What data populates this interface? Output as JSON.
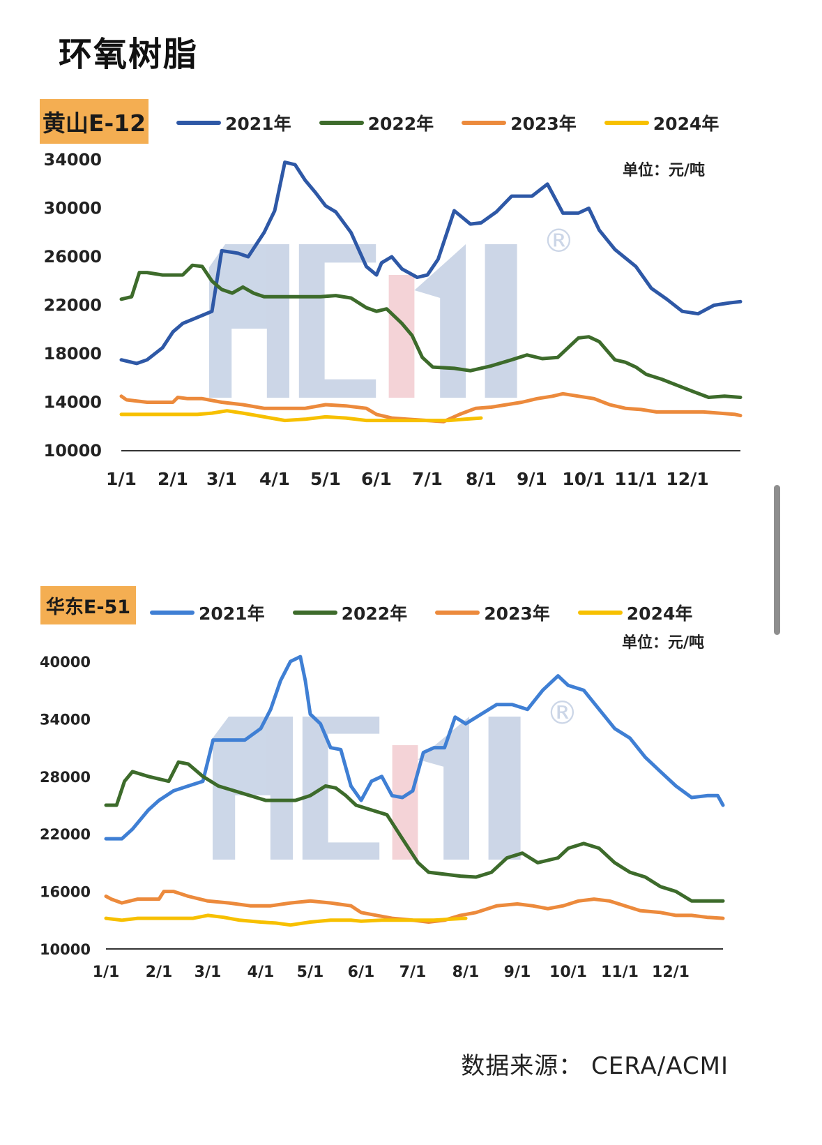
{
  "page": {
    "title": "环氧树脂",
    "source": "数据来源： CERA/ACMI",
    "watermark": "ACMI®"
  },
  "colors": {
    "2021": "#2E58A6",
    "2022": "#3D6B2B",
    "2023": "#EC8A3C",
    "2024": "#F7C000",
    "badge": "#F4AE52"
  },
  "chart_data": [
    {
      "type": "line",
      "title": "黄山E-12",
      "unit": "单位：元/吨",
      "ylim": [
        10000,
        34000
      ],
      "yticks": [
        "34000",
        "30000",
        "26000",
        "22000",
        "18000",
        "14000",
        "10000"
      ],
      "x_ticks": [
        "1/1",
        "2/1",
        "3/1",
        "4/1",
        "5/1",
        "6/1",
        "7/1",
        "8/1",
        "9/1",
        "10/1",
        "11/1",
        "12/1"
      ],
      "series": [
        {
          "name": "2021年",
          "color": "#2E58A6",
          "x": [
            0,
            0.3,
            0.5,
            0.8,
            1.0,
            1.2,
            1.5,
            1.8,
            2.0,
            2.3,
            2.5,
            2.8,
            3.0,
            3.2,
            3.4,
            3.6,
            3.8,
            4.0,
            4.2,
            4.5,
            4.8,
            5.0,
            5.1,
            5.3,
            5.5,
            5.8,
            6.0,
            6.2,
            6.5,
            6.8,
            7.0,
            7.3,
            7.6,
            8.0,
            8.3,
            8.6,
            8.9,
            9.1,
            9.3,
            9.6,
            10.0,
            10.3,
            10.6,
            10.9,
            11.2,
            11.5,
            11.8,
            12.0
          ],
          "y": [
            17500,
            17200,
            17500,
            18500,
            19800,
            20500,
            21000,
            21500,
            26500,
            26300,
            26000,
            28000,
            29800,
            33800,
            33600,
            32300,
            31300,
            30200,
            29700,
            28000,
            25200,
            24500,
            25500,
            26000,
            25000,
            24300,
            24500,
            25800,
            29800,
            28700,
            28800,
            29700,
            31000,
            31000,
            32000,
            29600,
            29600,
            30000,
            28200,
            26600,
            25200,
            23400,
            22500,
            21500,
            21300,
            22000,
            22200,
            22300
          ]
        },
        {
          "name": "2022年",
          "color": "#3D6B2B",
          "x": [
            0,
            0.2,
            0.35,
            0.5,
            0.8,
            1.2,
            1.4,
            1.6,
            1.8,
            2.0,
            2.2,
            2.4,
            2.6,
            2.8,
            3.1,
            3.5,
            3.9,
            4.2,
            4.5,
            4.8,
            5.0,
            5.2,
            5.5,
            5.7,
            5.9,
            6.1,
            6.5,
            6.8,
            7.2,
            7.6,
            7.9,
            8.2,
            8.5,
            8.9,
            9.1,
            9.3,
            9.6,
            9.8,
            10.0,
            10.2,
            10.5,
            10.8,
            11.1,
            11.4,
            11.7,
            12.0
          ],
          "y": [
            22500,
            22700,
            24700,
            24700,
            24500,
            24500,
            25300,
            25200,
            24000,
            23300,
            23000,
            23500,
            23000,
            22700,
            22700,
            22700,
            22700,
            22800,
            22600,
            21800,
            21500,
            21700,
            20500,
            19500,
            17700,
            16900,
            16800,
            16600,
            17000,
            17500,
            17900,
            17600,
            17700,
            19300,
            19400,
            19000,
            17500,
            17300,
            16900,
            16300,
            15900,
            15400,
            14900,
            14400,
            14500,
            14400
          ]
        },
        {
          "name": "2023年",
          "color": "#EC8A3C",
          "x": [
            0,
            0.1,
            0.5,
            1.0,
            1.1,
            1.3,
            1.6,
            2.0,
            2.4,
            2.8,
            3.2,
            3.6,
            4.0,
            4.4,
            4.8,
            5.0,
            5.3,
            5.6,
            6.0,
            6.3,
            6.6,
            6.9,
            7.2,
            7.5,
            7.8,
            8.1,
            8.4,
            8.6,
            8.9,
            9.2,
            9.5,
            9.8,
            10.1,
            10.4,
            10.8,
            11.0,
            11.3,
            11.6,
            11.9,
            12.0
          ],
          "y": [
            14500,
            14200,
            14000,
            14000,
            14400,
            14300,
            14300,
            14000,
            13800,
            13500,
            13500,
            13500,
            13800,
            13700,
            13500,
            13000,
            12700,
            12600,
            12500,
            12400,
            13000,
            13500,
            13600,
            13800,
            14000,
            14300,
            14500,
            14700,
            14500,
            14300,
            13800,
            13500,
            13400,
            13200,
            13200,
            13200,
            13200,
            13100,
            13000,
            12900
          ]
        },
        {
          "name": "2024年",
          "color": "#F7C000",
          "x": [
            0,
            0.5,
            1.0,
            1.5,
            1.8,
            2.1,
            2.4,
            2.8,
            3.2,
            3.6,
            4.0,
            4.4,
            4.8,
            5.0,
            5.3,
            5.7,
            6.0,
            6.4,
            6.7,
            7.0
          ],
          "y": [
            13000,
            13000,
            13000,
            13000,
            13100,
            13300,
            13100,
            12800,
            12500,
            12600,
            12800,
            12700,
            12500,
            12500,
            12500,
            12500,
            12500,
            12500,
            12600,
            12700
          ]
        }
      ]
    },
    {
      "type": "line",
      "title": "华东E-51",
      "unit": "单位：元/吨",
      "ylim": [
        10000,
        40000
      ],
      "yticks": [
        "40000",
        "34000",
        "28000",
        "22000",
        "16000",
        "10000"
      ],
      "x_ticks": [
        "1/1",
        "2/1",
        "3/1",
        "4/1",
        "5/1",
        "6/1",
        "7/1",
        "8/1",
        "9/1",
        "10/1",
        "11/1",
        "12/1"
      ],
      "series": [
        {
          "name": "2021年",
          "color": "#3F7FD4",
          "x": [
            0,
            0.3,
            0.5,
            0.8,
            1.0,
            1.3,
            1.6,
            1.9,
            2.1,
            2.4,
            2.7,
            3.0,
            3.2,
            3.4,
            3.6,
            3.8,
            3.9,
            4.0,
            4.2,
            4.4,
            4.6,
            4.8,
            5.0,
            5.2,
            5.4,
            5.6,
            5.8,
            6.0,
            6.2,
            6.4,
            6.6,
            6.8,
            7.0,
            7.3,
            7.6,
            7.9,
            8.2,
            8.5,
            8.8,
            9.0,
            9.3,
            9.6,
            9.9,
            10.2,
            10.5,
            10.8,
            11.1,
            11.4,
            11.7,
            11.9,
            12.0
          ],
          "y": [
            21500,
            21500,
            22500,
            24500,
            25500,
            26500,
            27000,
            27500,
            31800,
            31800,
            31800,
            33000,
            35000,
            38000,
            40000,
            40500,
            38000,
            34500,
            33500,
            31000,
            30800,
            27000,
            25500,
            27500,
            28000,
            26000,
            25800,
            26500,
            30500,
            31000,
            31000,
            34200,
            33500,
            34500,
            35500,
            35500,
            35000,
            37000,
            38500,
            37500,
            37000,
            35000,
            33000,
            32000,
            30000,
            28500,
            27000,
            25800,
            26000,
            26000,
            25000
          ]
        },
        {
          "name": "2022年",
          "color": "#3D6B2B",
          "x": [
            0,
            0.2,
            0.35,
            0.5,
            0.8,
            1.2,
            1.4,
            1.6,
            1.9,
            2.2,
            2.5,
            2.8,
            3.1,
            3.4,
            3.7,
            4.0,
            4.3,
            4.5,
            4.7,
            4.9,
            5.2,
            5.5,
            5.8,
            6.1,
            6.3,
            6.6,
            6.9,
            7.2,
            7.5,
            7.8,
            8.1,
            8.4,
            8.8,
            9.0,
            9.3,
            9.6,
            9.9,
            10.2,
            10.5,
            10.8,
            11.1,
            11.4,
            11.7,
            11.9,
            12.0
          ],
          "y": [
            25000,
            25000,
            27500,
            28500,
            28000,
            27500,
            29500,
            29300,
            28000,
            27000,
            26500,
            26000,
            25500,
            25500,
            25500,
            26000,
            27000,
            26800,
            26000,
            25000,
            24500,
            24000,
            21500,
            19000,
            18000,
            17800,
            17600,
            17500,
            18000,
            19500,
            20000,
            19000,
            19500,
            20500,
            21000,
            20500,
            19000,
            18000,
            17500,
            16500,
            16000,
            15000,
            15000,
            15000,
            15000
          ]
        },
        {
          "name": "2023年",
          "color": "#EC8A3C",
          "x": [
            0,
            0.1,
            0.3,
            0.6,
            1.0,
            1.1,
            1.3,
            1.6,
            2.0,
            2.4,
            2.8,
            3.2,
            3.6,
            4.0,
            4.4,
            4.8,
            5.0,
            5.3,
            5.6,
            6.0,
            6.3,
            6.6,
            6.9,
            7.2,
            7.6,
            8.0,
            8.3,
            8.6,
            8.9,
            9.2,
            9.5,
            9.8,
            10.1,
            10.4,
            10.8,
            11.1,
            11.4,
            11.7,
            12.0
          ],
          "y": [
            15500,
            15200,
            14800,
            15200,
            15200,
            16000,
            16000,
            15500,
            15000,
            14800,
            14500,
            14500,
            14800,
            15000,
            14800,
            14500,
            13800,
            13500,
            13200,
            13000,
            12800,
            13000,
            13500,
            13800,
            14500,
            14700,
            14500,
            14200,
            14500,
            15000,
            15200,
            15000,
            14500,
            14000,
            13800,
            13500,
            13500,
            13300,
            13200
          ]
        },
        {
          "name": "2024年",
          "color": "#F7C000",
          "x": [
            0,
            0.3,
            0.6,
            1.0,
            1.4,
            1.7,
            2.0,
            2.3,
            2.6,
            3.0,
            3.3,
            3.6,
            4.0,
            4.4,
            4.8,
            5.0,
            5.4,
            5.8,
            6.0,
            6.4,
            6.7,
            7.0
          ],
          "y": [
            13200,
            13000,
            13200,
            13200,
            13200,
            13200,
            13500,
            13300,
            13000,
            12800,
            12700,
            12500,
            12800,
            13000,
            13000,
            12900,
            13000,
            13000,
            13000,
            13000,
            13100,
            13200
          ]
        }
      ]
    }
  ]
}
